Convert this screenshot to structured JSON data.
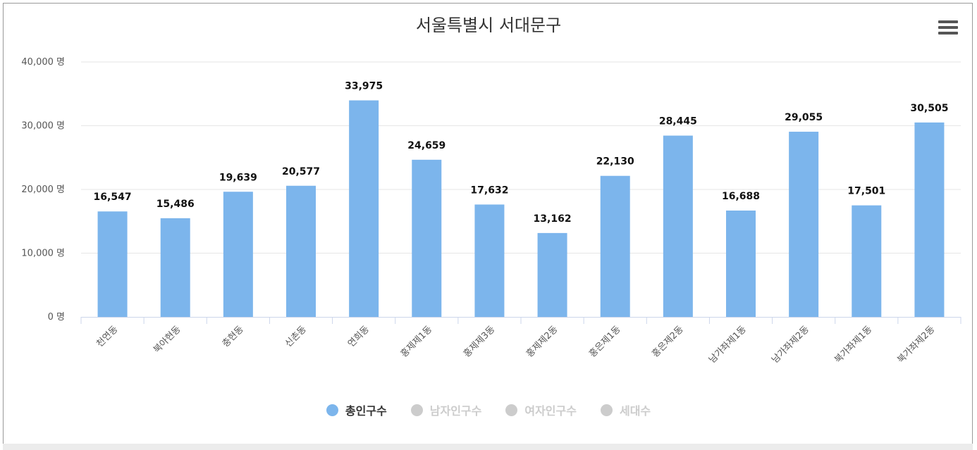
{
  "title": "서울특별시 서대문구",
  "menu": {
    "icon": "hamburger-menu-icon"
  },
  "chart_data": {
    "type": "bar",
    "title": "서울특별시 서대문구",
    "categories": [
      "천연동",
      "북아현동",
      "충현동",
      "신촌동",
      "연희동",
      "홍제제1동",
      "홍제제3동",
      "홍제제2동",
      "홍은제1동",
      "홍은제2동",
      "남가좌제1동",
      "남가좌제2동",
      "북가좌제1동",
      "북가좌제2동"
    ],
    "series": [
      {
        "name": "총인구수",
        "values": [
          16547,
          15486,
          19639,
          20577,
          33975,
          24659,
          17632,
          13162,
          22130,
          28445,
          16688,
          29055,
          17501,
          30505
        ],
        "visible": true,
        "color": "#7cb5ec"
      }
    ],
    "data_labels": [
      "16,547",
      "15,486",
      "19,639",
      "20,577",
      "33,975",
      "24,659",
      "17,632",
      "13,162",
      "22,130",
      "28,445",
      "16,688",
      "29,055",
      "17,501",
      "30,505"
    ],
    "y_ticks": [
      "0 명",
      "10,000 명",
      "20,000 명",
      "30,000 명",
      "40,000 명"
    ],
    "ylim": [
      0,
      40000
    ],
    "grid": true,
    "legend_position": "bottom-center"
  },
  "legend": [
    {
      "label": "총인구수",
      "color": "#7cb5ec",
      "text_color": "#333333"
    },
    {
      "label": "남자인구수",
      "color": "#cccccc",
      "text_color": "#cccccc"
    },
    {
      "label": "여자인구수",
      "color": "#cccccc",
      "text_color": "#cccccc"
    },
    {
      "label": "세대수",
      "color": "#cccccc",
      "text_color": "#cccccc"
    }
  ]
}
